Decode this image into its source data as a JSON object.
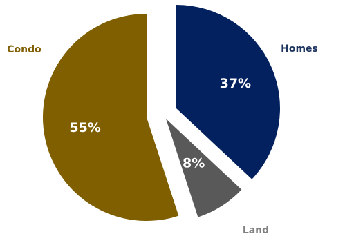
{
  "chart_data": {
    "type": "pie",
    "title": "",
    "slices": [
      {
        "name": "Homes",
        "value": 37,
        "label": "37%",
        "color": "#03215e",
        "label_color": "#1e3560"
      },
      {
        "name": "Land",
        "value": 8,
        "label": "8%",
        "color": "#595959",
        "label_color": "#808080"
      },
      {
        "name": "Condo",
        "value": 55,
        "label": "55%",
        "color": "#7f5f00",
        "label_color": "#7f5f00"
      }
    ],
    "legend": "none",
    "exploded": true
  }
}
